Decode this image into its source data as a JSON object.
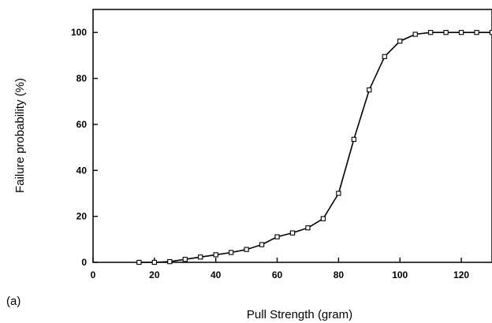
{
  "chart_data": {
    "type": "line",
    "title": "",
    "xlabel": "Pull Strength (gram)",
    "ylabel": "Failure probability (%)",
    "panel_label": "(a)",
    "xlim": [
      0,
      130
    ],
    "ylim": [
      0,
      110
    ],
    "x_ticks": [
      "0",
      "20",
      "40",
      "60",
      "80",
      "100",
      "120"
    ],
    "y_ticks": [
      "0",
      "20",
      "40",
      "60",
      "80",
      "100"
    ],
    "grid": false,
    "legend": "none",
    "line_color": "#000000",
    "marker": "open-square",
    "series": [
      {
        "x": [
          15,
          20,
          25,
          30,
          35,
          40,
          45,
          50,
          55,
          60,
          65,
          70,
          75,
          80,
          85,
          90,
          95,
          100,
          105,
          110,
          115,
          120,
          125,
          130
        ],
        "y": [
          0,
          0,
          0.3,
          1.3,
          2.3,
          3.3,
          4.3,
          5.6,
          7.7,
          11.1,
          12.8,
          15,
          19,
          30,
          53.5,
          75,
          89.5,
          96.2,
          99.2,
          100,
          100,
          100,
          100,
          100
        ]
      }
    ]
  }
}
